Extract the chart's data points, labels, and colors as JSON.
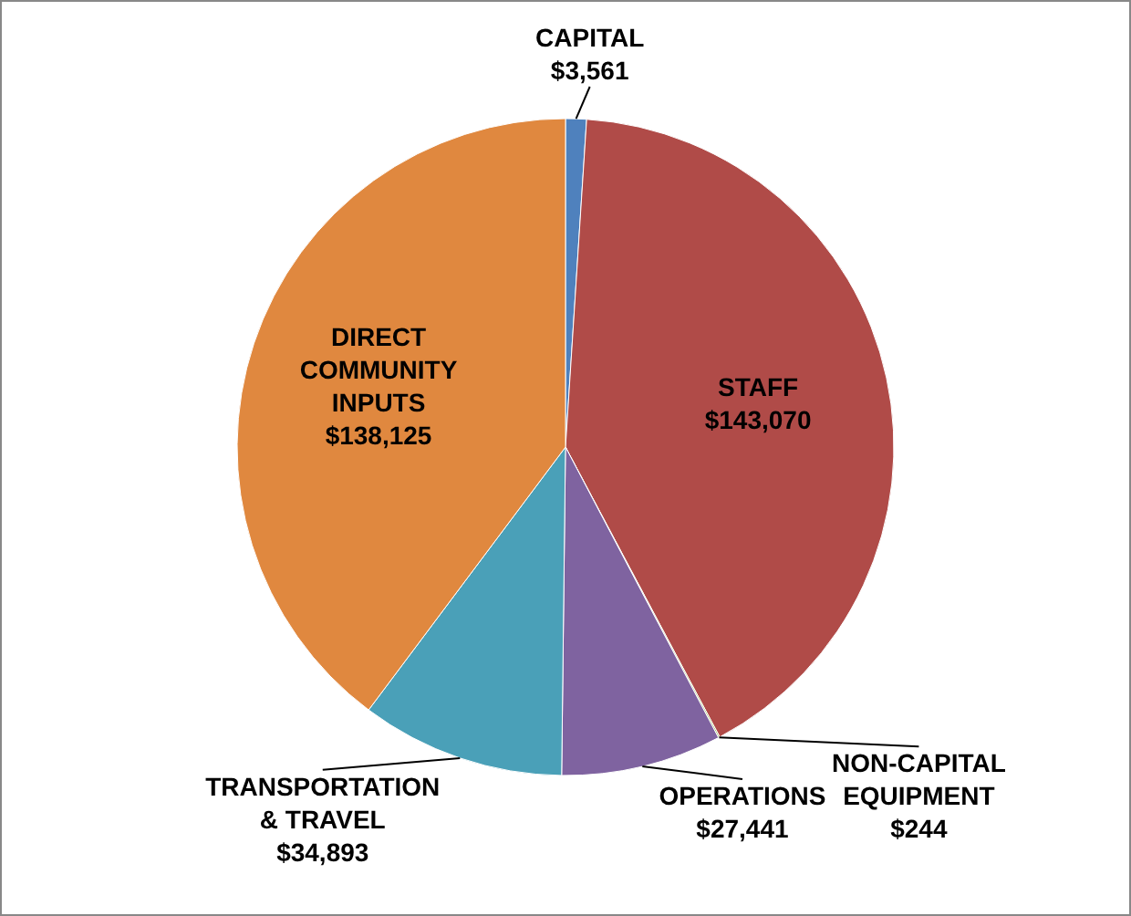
{
  "chart_data": {
    "type": "pie",
    "categories": [
      "CAPITAL",
      "STAFF",
      "NON-CAPITAL EQUIPMENT",
      "OPERATIONS",
      "TRANSPORTATION & TRAVEL",
      "DIRECT COMMUNITY INPUTS"
    ],
    "values": [
      3561,
      143070,
      244,
      27441,
      34893,
      138125
    ],
    "value_labels": [
      "$3,561",
      "$143,070",
      "$244",
      "$27,441",
      "$34,893",
      "$138,125"
    ],
    "colors": [
      "#4f81bd",
      "#b04b48",
      "#9bbb59",
      "#7f63a0",
      "#4aa0b8",
      "#e0883f"
    ]
  }
}
